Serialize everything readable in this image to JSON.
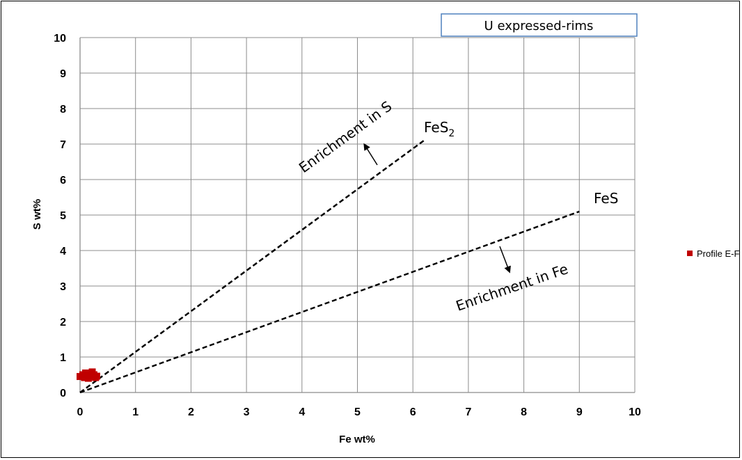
{
  "chart_data": {
    "type": "scatter",
    "title": "U expressed-rims",
    "xlabel": "Fe wt%",
    "ylabel": "S wt%",
    "xlim": [
      0,
      10
    ],
    "ylim": [
      0,
      10
    ],
    "x_ticks": [
      "0",
      "1",
      "2",
      "3",
      "4",
      "5",
      "6",
      "7",
      "8",
      "9",
      "10"
    ],
    "y_ticks": [
      "0",
      "1",
      "2",
      "3",
      "4",
      "5",
      "6",
      "7",
      "8",
      "9",
      "10"
    ],
    "grid": true,
    "legend_position": "right",
    "series": [
      {
        "name": "Profile E-F",
        "color": "#c00000",
        "marker": "square",
        "points": [
          {
            "x": 0.0,
            "y": 0.45
          },
          {
            "x": 0.05,
            "y": 0.5
          },
          {
            "x": 0.08,
            "y": 0.42
          },
          {
            "x": 0.1,
            "y": 0.55
          },
          {
            "x": 0.12,
            "y": 0.48
          },
          {
            "x": 0.15,
            "y": 0.4
          },
          {
            "x": 0.18,
            "y": 0.52
          },
          {
            "x": 0.2,
            "y": 0.45
          },
          {
            "x": 0.22,
            "y": 0.58
          },
          {
            "x": 0.25,
            "y": 0.5
          },
          {
            "x": 0.28,
            "y": 0.42
          },
          {
            "x": 0.3,
            "y": 0.46
          }
        ]
      }
    ],
    "reference_lines": [
      {
        "label": "FeS",
        "subscript": "2",
        "x": [
          0,
          6.2
        ],
        "y": [
          0,
          7.1
        ]
      },
      {
        "label": "FeS",
        "subscript": "",
        "x": [
          0,
          9.0
        ],
        "y": [
          0,
          5.1
        ]
      }
    ],
    "annotations": [
      {
        "text": "Enrichment in S"
      },
      {
        "text": "Enrichment in Fe"
      }
    ]
  }
}
